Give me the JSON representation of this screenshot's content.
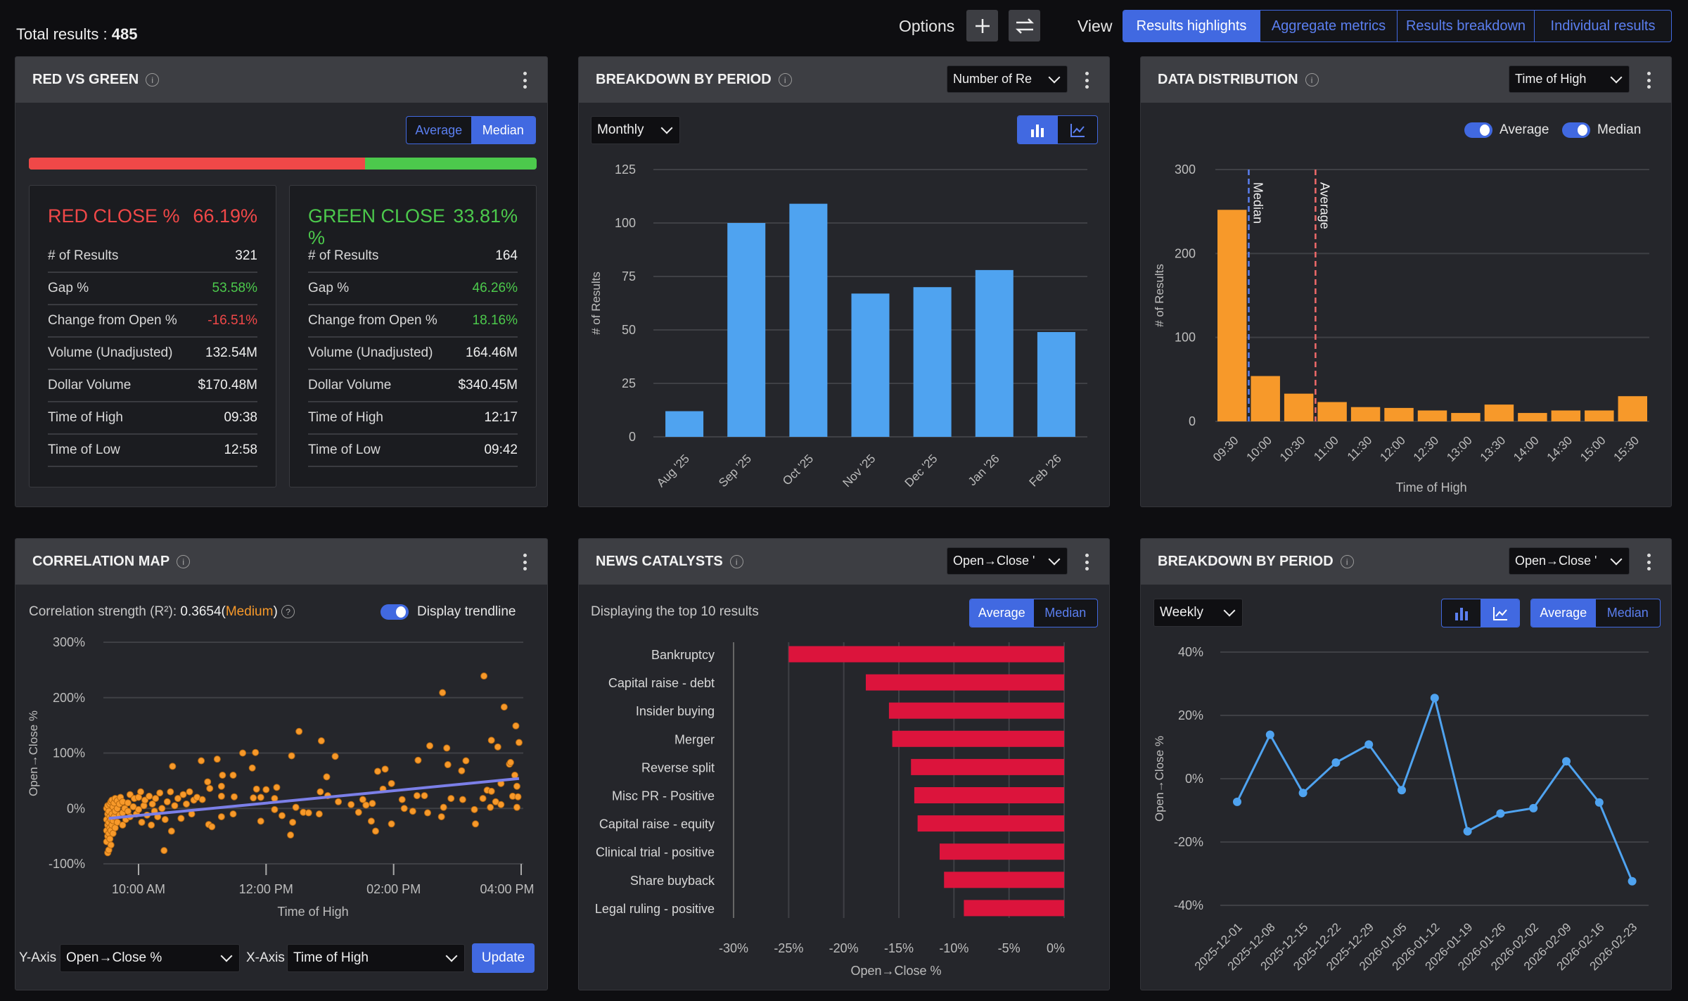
{
  "topbar": {
    "total_results_label": "Total results : ",
    "total_results": "485",
    "options_label": "Options",
    "add_icon": "plus-icon",
    "swap_icon": "swap-arrows-icon",
    "view_label": "View",
    "views": [
      "Results highlights",
      "Aggregate metrics",
      "Results breakdown",
      "Individual results"
    ],
    "active_view": "Results highlights"
  },
  "colors": {
    "accent": "#4169e1",
    "red": "#f04848",
    "green": "#4cc94c",
    "bar_blue": "#4fa3f0",
    "orange": "#f7992a",
    "crimson": "#dc143c",
    "median_line": "#5b7ff0",
    "average_line": "#f06a6a",
    "trend": "#7b7fe8"
  },
  "red_vs_green": {
    "title": "RED VS GREEN",
    "toggle": {
      "options": [
        "Average",
        "Median"
      ],
      "selected": "Median"
    },
    "red_fraction_pct": 66.19,
    "red": {
      "heading": "RED CLOSE %",
      "value": "66.19%",
      "rows": [
        {
          "label": "# of Results",
          "value": "321",
          "tone": "neutral"
        },
        {
          "label": "Gap %",
          "value": "53.58%",
          "tone": "green"
        },
        {
          "label": "Change from Open %",
          "value": "-16.51%",
          "tone": "red"
        },
        {
          "label": "Volume (Unadjusted)",
          "value": "132.54M",
          "tone": "neutral"
        },
        {
          "label": "Dollar Volume",
          "value": "$170.48M",
          "tone": "neutral"
        },
        {
          "label": "Time of High",
          "value": "09:38",
          "tone": "neutral"
        },
        {
          "label": "Time of Low",
          "value": "12:58",
          "tone": "neutral"
        }
      ]
    },
    "green": {
      "heading": "GREEN CLOSE %",
      "value": "33.81%",
      "rows": [
        {
          "label": "# of Results",
          "value": "164",
          "tone": "neutral"
        },
        {
          "label": "Gap %",
          "value": "46.26%",
          "tone": "green"
        },
        {
          "label": "Change from Open %",
          "value": "18.16%",
          "tone": "green"
        },
        {
          "label": "Volume (Unadjusted)",
          "value": "164.46M",
          "tone": "neutral"
        },
        {
          "label": "Dollar Volume",
          "value": "$340.45M",
          "tone": "neutral"
        },
        {
          "label": "Time of High",
          "value": "12:17",
          "tone": "neutral"
        },
        {
          "label": "Time of Low",
          "value": "09:42",
          "tone": "neutral"
        }
      ]
    }
  },
  "breakdown_monthly": {
    "title": "BREAKDOWN BY PERIOD",
    "metric_select": "Number of Re",
    "period_select": "Monthly",
    "chart_type_selected": "bar"
  },
  "data_distribution": {
    "title": "DATA DISTRIBUTION",
    "field_select": "Time of High",
    "toggles": [
      {
        "label": "Average",
        "on": true
      },
      {
        "label": "Median",
        "on": true
      }
    ]
  },
  "correlation": {
    "title": "CORRELATION MAP",
    "strength_label": "Correlation strength (R²):",
    "strength_value": "0.3654",
    "strength_word": "Medium",
    "trendline_label": "Display trendline",
    "trendline_on": true,
    "y_axis_label": "Y-Axis",
    "y_axis_value": "Open→Close %",
    "x_axis_label": "X-Axis",
    "x_axis_value": "Time of High",
    "update_label": "Update"
  },
  "news": {
    "title": "NEWS CATALYSTS",
    "metric_select": "Open→Close '",
    "subtitle": "Displaying the top 10 results",
    "toggle": {
      "options": [
        "Average",
        "Median"
      ],
      "selected": "Average"
    }
  },
  "breakdown_weekly": {
    "title": "BREAKDOWN BY PERIOD",
    "metric_select": "Open→Close '",
    "period_select": "Weekly",
    "chart_type_selected": "line",
    "toggle": {
      "options": [
        "Average",
        "Median"
      ],
      "selected": "Average"
    }
  },
  "chart_data": [
    {
      "id": "monthly",
      "type": "bar",
      "categories": [
        "Aug '25",
        "Sep '25",
        "Oct '25",
        "Nov '25",
        "Dec '25",
        "Jan '26",
        "Feb '26"
      ],
      "values": [
        12,
        100,
        109,
        67,
        70,
        78,
        49
      ],
      "ylabel": "# of Results",
      "ylim": [
        0,
        125
      ],
      "yticks": [
        "0",
        "25",
        "50",
        "75",
        "100",
        "125"
      ],
      "grid": true
    },
    {
      "id": "distribution",
      "type": "bar",
      "categories": [
        "09:30",
        "10:00",
        "10:30",
        "11:00",
        "11:30",
        "12:00",
        "12:30",
        "13:00",
        "13:30",
        "14:00",
        "14:30",
        "15:00",
        "15:30"
      ],
      "values": [
        252,
        54,
        33,
        23,
        17,
        16,
        13,
        10,
        20,
        10,
        13,
        13,
        30
      ],
      "xlabel": "Time of High",
      "ylabel": "# of Results",
      "ylim": [
        0,
        300
      ],
      "yticks": [
        "0",
        "100",
        "200",
        "300"
      ],
      "grid": true,
      "markers": [
        {
          "label": "Median",
          "at": "10:00"
        },
        {
          "label": "Average",
          "at": "11:00"
        }
      ]
    },
    {
      "id": "correlation",
      "type": "scatter",
      "xlabel": "Time of High",
      "ylabel": "Open→Close %",
      "xlim": [
        "09:30",
        "16:00"
      ],
      "xticks": [
        "10:00 AM",
        "12:00 PM",
        "02:00 PM",
        "04:00 PM"
      ],
      "ylim": [
        -100,
        300
      ],
      "yticks": [
        "-100%",
        "0%",
        "100%",
        "200%",
        "300%"
      ],
      "grid": true,
      "trendline": [
        [
          "09:32",
          -18
        ],
        [
          "15:58",
          54
        ]
      ],
      "points": [
        [
          "09:30",
          -60
        ],
        [
          "09:30",
          -40
        ],
        [
          "09:30",
          -20
        ],
        [
          "09:30",
          0
        ],
        [
          "09:31",
          -80
        ],
        [
          "09:31",
          -50
        ],
        [
          "09:31",
          -30
        ],
        [
          "09:31",
          -10
        ],
        [
          "09:31",
          5
        ],
        [
          "09:32",
          -75
        ],
        [
          "09:32",
          -45
        ],
        [
          "09:32",
          -25
        ],
        [
          "09:32",
          -5
        ],
        [
          "09:33",
          -55
        ],
        [
          "09:33",
          -35
        ],
        [
          "09:33",
          -15
        ],
        [
          "09:33",
          8
        ],
        [
          "09:34",
          -66
        ],
        [
          "09:34",
          -40
        ],
        [
          "09:34",
          -20
        ],
        [
          "09:34",
          12
        ],
        [
          "09:35",
          -30
        ],
        [
          "09:35",
          -10
        ],
        [
          "09:35",
          15
        ],
        [
          "09:36",
          -45
        ],
        [
          "09:36",
          -22
        ],
        [
          "09:36",
          3
        ],
        [
          "09:37",
          -15
        ],
        [
          "09:37",
          10
        ],
        [
          "09:38",
          -35
        ],
        [
          "09:38",
          -5
        ],
        [
          "09:38",
          18
        ],
        [
          "09:40",
          -25
        ],
        [
          "09:40",
          0
        ],
        [
          "09:40",
          14
        ],
        [
          "09:42",
          -12
        ],
        [
          "09:42",
          8
        ],
        [
          "09:43",
          20
        ],
        [
          "09:45",
          -30
        ],
        [
          "09:45",
          -8
        ],
        [
          "09:45",
          12
        ],
        [
          "09:47",
          0
        ],
        [
          "09:48",
          -20
        ],
        [
          "09:50",
          10
        ],
        [
          "09:50",
          -5
        ],
        [
          "09:52",
          25
        ],
        [
          "09:52",
          -15
        ],
        [
          "09:55",
          3
        ],
        [
          "09:56",
          18
        ],
        [
          "09:58",
          -10
        ],
        [
          "10:00",
          20
        ],
        [
          "10:00",
          -2
        ],
        [
          "10:02",
          30
        ],
        [
          "10:03",
          -25
        ],
        [
          "10:05",
          5
        ],
        [
          "10:06",
          15
        ],
        [
          "10:08",
          -12
        ],
        [
          "10:10",
          22
        ],
        [
          "10:12",
          -30
        ],
        [
          "10:13",
          8
        ],
        [
          "10:15",
          -5
        ],
        [
          "10:16",
          18
        ],
        [
          "10:18",
          -15
        ],
        [
          "10:20",
          28
        ],
        [
          "10:22",
          0
        ],
        [
          "10:24",
          -76
        ],
        [
          "10:25",
          -20
        ],
        [
          "10:27",
          12
        ],
        [
          "10:30",
          30
        ],
        [
          "10:31",
          -41
        ],
        [
          "10:32",
          76
        ],
        [
          "10:34",
          5
        ],
        [
          "10:37",
          18
        ],
        [
          "10:40",
          -18
        ],
        [
          "10:42",
          25
        ],
        [
          "10:45",
          8
        ],
        [
          "10:48",
          30
        ],
        [
          "10:50",
          -10
        ],
        [
          "10:52",
          15
        ],
        [
          "10:55",
          20
        ],
        [
          "10:59",
          86
        ],
        [
          "11:00",
          16
        ],
        [
          "11:05",
          48
        ],
        [
          "11:06",
          -29
        ],
        [
          "11:07",
          36
        ],
        [
          "11:09",
          -33
        ],
        [
          "11:14",
          89
        ],
        [
          "11:18",
          40
        ],
        [
          "11:18",
          22
        ],
        [
          "11:18",
          -15
        ],
        [
          "11:19",
          60
        ],
        [
          "11:29",
          60
        ],
        [
          "11:29",
          -10
        ],
        [
          "11:30",
          21
        ],
        [
          "11:38",
          100
        ],
        [
          "11:47",
          73
        ],
        [
          "11:48",
          19
        ],
        [
          "11:50",
          101
        ],
        [
          "11:51",
          35
        ],
        [
          "11:55",
          20
        ],
        [
          "11:55",
          -23
        ],
        [
          "12:00",
          34
        ],
        [
          "12:08",
          18
        ],
        [
          "12:08",
          -2
        ],
        [
          "12:10",
          38
        ],
        [
          "12:15",
          -13
        ],
        [
          "12:23",
          -48
        ],
        [
          "12:24",
          95
        ],
        [
          "12:25",
          -25
        ],
        [
          "12:28",
          2
        ],
        [
          "12:31",
          139
        ],
        [
          "12:35",
          -7
        ],
        [
          "12:40",
          -8
        ],
        [
          "12:50",
          -10
        ],
        [
          "12:51",
          30
        ],
        [
          "12:52",
          122
        ],
        [
          "12:57",
          57
        ],
        [
          "12:58",
          23
        ],
        [
          "13:05",
          94
        ],
        [
          "13:08",
          12
        ],
        [
          "13:20",
          7
        ],
        [
          "13:27",
          -7
        ],
        [
          "13:31",
          16
        ],
        [
          "13:34",
          6
        ],
        [
          "13:39",
          -23
        ],
        [
          "13:40",
          9
        ],
        [
          "13:43",
          -41
        ],
        [
          "13:45",
          67
        ],
        [
          "13:50",
          35
        ],
        [
          "13:52",
          71
        ],
        [
          "13:58",
          45
        ],
        [
          "13:58",
          -28
        ],
        [
          "14:08",
          16
        ],
        [
          "14:10",
          0
        ],
        [
          "14:18",
          -5
        ],
        [
          "14:22",
          23
        ],
        [
          "14:23",
          87
        ],
        [
          "14:29",
          23
        ],
        [
          "14:32",
          -8
        ],
        [
          "14:34",
          113
        ],
        [
          "14:45",
          -15
        ],
        [
          "14:46",
          209
        ],
        [
          "14:47",
          2
        ],
        [
          "14:50",
          109
        ],
        [
          "14:51",
          79
        ],
        [
          "14:54",
          18
        ],
        [
          "15:04",
          68
        ],
        [
          "15:05",
          16
        ],
        [
          "15:08",
          86
        ],
        [
          "15:16",
          -2
        ],
        [
          "15:17",
          -28
        ],
        [
          "15:24",
          18
        ],
        [
          "15:25",
          239
        ],
        [
          "15:28",
          33
        ],
        [
          "15:31",
          2
        ],
        [
          "15:32",
          31
        ],
        [
          "15:32",
          123
        ],
        [
          "15:36",
          12
        ],
        [
          "15:38",
          111
        ],
        [
          "15:41",
          45
        ],
        [
          "15:41",
          7
        ],
        [
          "15:44",
          183
        ],
        [
          "15:49",
          80
        ],
        [
          "15:50",
          83
        ],
        [
          "15:52",
          22
        ],
        [
          "15:54",
          60
        ],
        [
          "15:55",
          149
        ],
        [
          "15:56",
          40
        ],
        [
          "15:56",
          2
        ],
        [
          "15:57",
          21
        ],
        [
          "15:58",
          119
        ]
      ]
    },
    {
      "id": "news",
      "type": "bar",
      "orientation": "horizontal",
      "categories": [
        "Bankruptcy",
        "Capital raise - debt",
        "Insider buying",
        "Merger",
        "Reverse split",
        "Misc PR - Positive",
        "Capital raise - equity",
        "Clinical trial - positive",
        "Share buyback",
        "Legal ruling - positive"
      ],
      "values": [
        -25.0,
        -18.0,
        -15.9,
        -15.6,
        -13.9,
        -13.6,
        -13.3,
        -11.3,
        -10.9,
        -9.1
      ],
      "xlabel": "Open→Close %",
      "xlim": [
        -30,
        0
      ],
      "xticks": [
        "-30%",
        "-25%",
        "-20%",
        "-15%",
        "-10%",
        "-5%",
        "0%"
      ],
      "grid": true
    },
    {
      "id": "weekly",
      "type": "line",
      "x": [
        "2025-12-01",
        "2025-12-08",
        "2025-12-15",
        "2025-12-22",
        "2025-12-29",
        "2026-01-05",
        "2026-01-12",
        "2026-01-19",
        "2026-01-26",
        "2026-02-02",
        "2026-02-09",
        "2026-02-16",
        "2026-02-23"
      ],
      "values": [
        -7.3,
        13.9,
        -4.5,
        5.1,
        10.8,
        -3.6,
        25.5,
        -16.6,
        -11.0,
        -9.3,
        5.5,
        -7.5,
        -32.4
      ],
      "ylabel": "Open→Close %",
      "ylim": [
        -40,
        40
      ],
      "yticks": [
        "-40%",
        "-20%",
        "0%",
        "20%",
        "40%"
      ],
      "grid": true
    }
  ]
}
